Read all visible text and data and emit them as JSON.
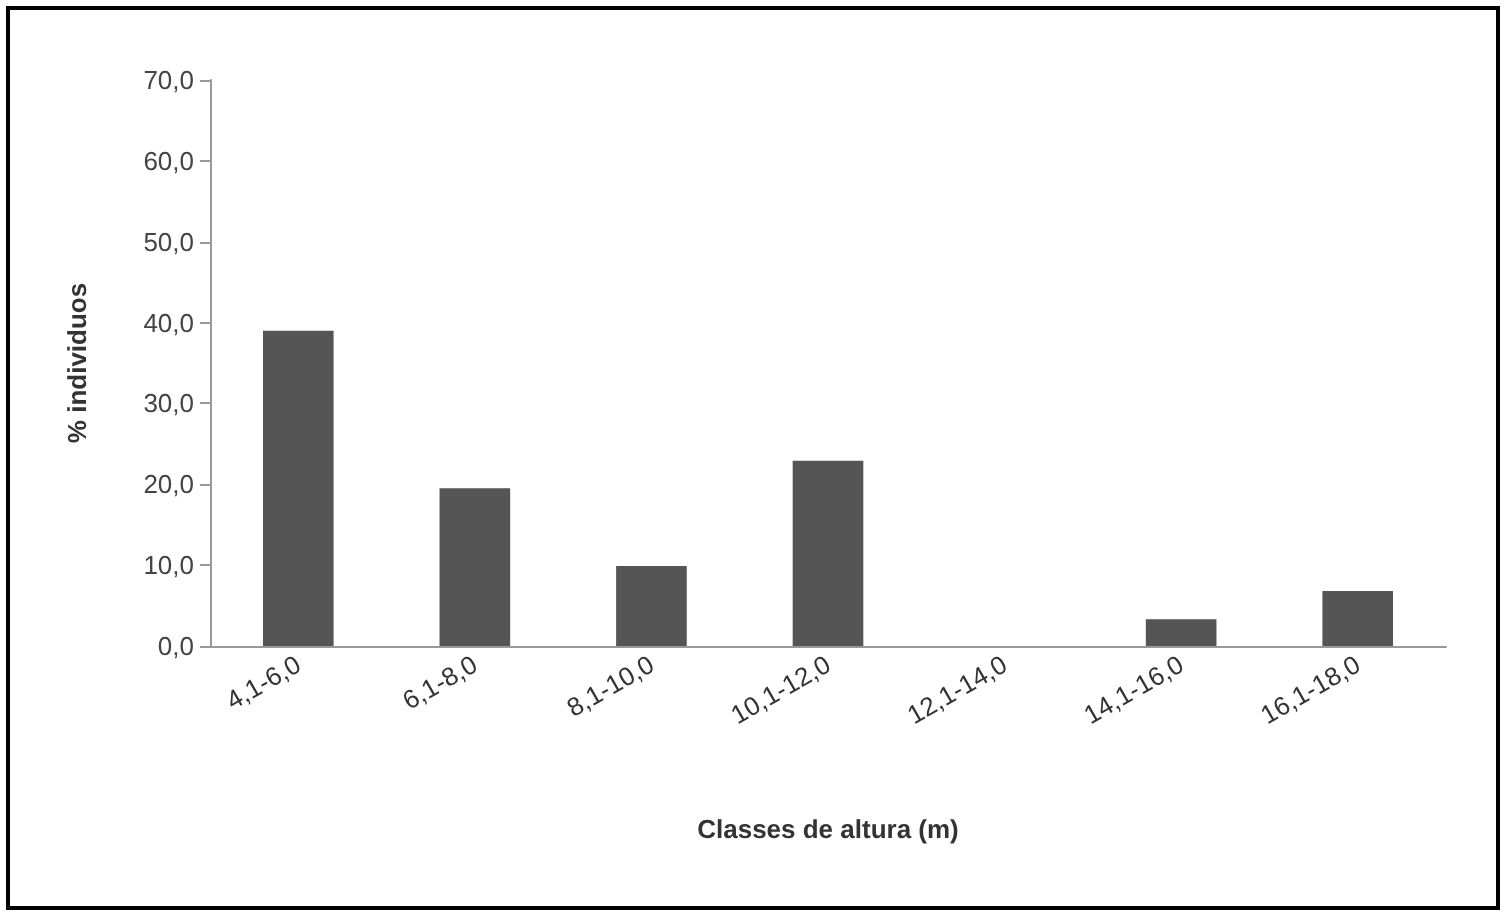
{
  "chart_data": {
    "type": "bar",
    "xlabel": "Classes de altura (m)",
    "ylabel": "% individuos",
    "categories": [
      "4,1-6,0",
      "6,1-8,0",
      "8,1-10,0",
      "10,1-12,0",
      "12,1-14,0",
      "14,1-16,0",
      "16,1-18,0"
    ],
    "values": [
      39.0,
      19.5,
      9.9,
      22.9,
      0,
      3.3,
      6.8
    ],
    "color": "#555555",
    "ylim": [
      0,
      70
    ],
    "yticks": [
      {
        "value": 0,
        "label": "0,0"
      },
      {
        "value": 10,
        "label": "10,0"
      },
      {
        "value": 20,
        "label": "20,0"
      },
      {
        "value": 30,
        "label": "30,0"
      },
      {
        "value": 40,
        "label": "40,0"
      },
      {
        "value": 50,
        "label": "50,0"
      },
      {
        "value": 60,
        "label": "60,0"
      },
      {
        "value": 70,
        "label": "70,0"
      }
    ],
    "grid": false
  }
}
